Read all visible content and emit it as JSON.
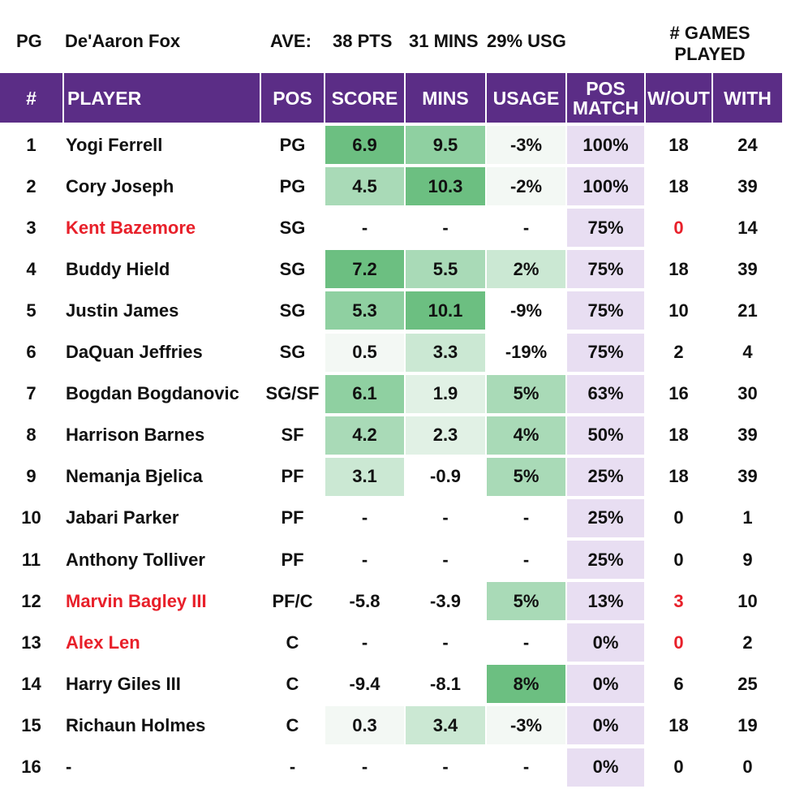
{
  "header": {
    "position": "PG",
    "player": "De'Aaron Fox",
    "ave_label": "AVE:",
    "pts": "38 PTS",
    "mins": "31 MINS",
    "usg": "29% USG",
    "games_label_1": "# GAMES",
    "games_label_2": "PLAYED"
  },
  "columns": {
    "num": "#",
    "player": "PLAYER",
    "pos": "POS",
    "score": "SCORE",
    "mins": "MINS",
    "usage": "USAGE",
    "pos_match_1": "POS",
    "pos_match_2": "MATCH",
    "without": "W/OUT",
    "with": "WITH"
  },
  "colors": {
    "header_bg": "#5b2d86",
    "header_text": "#ffffff",
    "pos_match_bg": "#e8def2",
    "injured_text": "#e8202a",
    "green_scale": [
      "#f3f8f4",
      "#e1f1e5",
      "#cbe8d3",
      "#a9dab7",
      "#8fd0a1",
      "#6cbf81"
    ]
  },
  "rows": [
    {
      "num": "1",
      "player": "Yogi Ferrell",
      "pos": "PG",
      "score": "6.9",
      "mins": "9.5",
      "usage": "-3%",
      "pos_match": "100%",
      "without": "18",
      "with": "24",
      "injured": false,
      "without_red": false,
      "score_shade": 5,
      "mins_shade": 4,
      "usage_shade": 0
    },
    {
      "num": "2",
      "player": "Cory Joseph",
      "pos": "PG",
      "score": "4.5",
      "mins": "10.3",
      "usage": "-2%",
      "pos_match": "100%",
      "without": "18",
      "with": "39",
      "injured": false,
      "without_red": false,
      "score_shade": 3,
      "mins_shade": 5,
      "usage_shade": 0
    },
    {
      "num": "3",
      "player": "Kent Bazemore",
      "pos": "SG",
      "score": "-",
      "mins": "-",
      "usage": "-",
      "pos_match": "75%",
      "without": "0",
      "with": "14",
      "injured": true,
      "without_red": true,
      "score_shade": -1,
      "mins_shade": -1,
      "usage_shade": -1
    },
    {
      "num": "4",
      "player": "Buddy Hield",
      "pos": "SG",
      "score": "7.2",
      "mins": "5.5",
      "usage": "2%",
      "pos_match": "75%",
      "without": "18",
      "with": "39",
      "injured": false,
      "without_red": false,
      "score_shade": 5,
      "mins_shade": 3,
      "usage_shade": 2
    },
    {
      "num": "5",
      "player": "Justin James",
      "pos": "SG",
      "score": "5.3",
      "mins": "10.1",
      "usage": "-9%",
      "pos_match": "75%",
      "without": "10",
      "with": "21",
      "injured": false,
      "without_red": false,
      "score_shade": 4,
      "mins_shade": 5,
      "usage_shade": -1
    },
    {
      "num": "6",
      "player": "DaQuan Jeffries",
      "pos": "SG",
      "score": "0.5",
      "mins": "3.3",
      "usage": "-19%",
      "pos_match": "75%",
      "without": "2",
      "with": "4",
      "injured": false,
      "without_red": false,
      "score_shade": 0,
      "mins_shade": 2,
      "usage_shade": -1
    },
    {
      "num": "7",
      "player": "Bogdan Bogdanovic",
      "pos": "SG/SF",
      "score": "6.1",
      "mins": "1.9",
      "usage": "5%",
      "pos_match": "63%",
      "without": "16",
      "with": "30",
      "injured": false,
      "without_red": false,
      "score_shade": 4,
      "mins_shade": 1,
      "usage_shade": 3
    },
    {
      "num": "8",
      "player": "Harrison Barnes",
      "pos": "SF",
      "score": "4.2",
      "mins": "2.3",
      "usage": "4%",
      "pos_match": "50%",
      "without": "18",
      "with": "39",
      "injured": false,
      "without_red": false,
      "score_shade": 3,
      "mins_shade": 1,
      "usage_shade": 3
    },
    {
      "num": "9",
      "player": "Nemanja Bjelica",
      "pos": "PF",
      "score": "3.1",
      "mins": "-0.9",
      "usage": "5%",
      "pos_match": "25%",
      "without": "18",
      "with": "39",
      "injured": false,
      "without_red": false,
      "score_shade": 2,
      "mins_shade": -1,
      "usage_shade": 3
    },
    {
      "num": "10",
      "player": "Jabari Parker",
      "pos": "PF",
      "score": "-",
      "mins": "-",
      "usage": "-",
      "pos_match": "25%",
      "without": "0",
      "with": "1",
      "injured": false,
      "without_red": false,
      "score_shade": -1,
      "mins_shade": -1,
      "usage_shade": -1
    },
    {
      "num": "11",
      "player": "Anthony Tolliver",
      "pos": "PF",
      "score": "-",
      "mins": "-",
      "usage": "-",
      "pos_match": "25%",
      "without": "0",
      "with": "9",
      "injured": false,
      "without_red": false,
      "score_shade": -1,
      "mins_shade": -1,
      "usage_shade": -1
    },
    {
      "num": "12",
      "player": "Marvin Bagley III",
      "pos": "PF/C",
      "score": "-5.8",
      "mins": "-3.9",
      "usage": "5%",
      "pos_match": "13%",
      "without": "3",
      "with": "10",
      "injured": true,
      "without_red": true,
      "score_shade": -1,
      "mins_shade": -1,
      "usage_shade": 3
    },
    {
      "num": "13",
      "player": "Alex Len",
      "pos": "C",
      "score": "-",
      "mins": "-",
      "usage": "-",
      "pos_match": "0%",
      "without": "0",
      "with": "2",
      "injured": true,
      "without_red": true,
      "score_shade": -1,
      "mins_shade": -1,
      "usage_shade": -1
    },
    {
      "num": "14",
      "player": "Harry Giles III",
      "pos": "C",
      "score": "-9.4",
      "mins": "-8.1",
      "usage": "8%",
      "pos_match": "0%",
      "without": "6",
      "with": "25",
      "injured": false,
      "without_red": false,
      "score_shade": -1,
      "mins_shade": -1,
      "usage_shade": 5
    },
    {
      "num": "15",
      "player": "Richaun Holmes",
      "pos": "C",
      "score": "0.3",
      "mins": "3.4",
      "usage": "-3%",
      "pos_match": "0%",
      "without": "18",
      "with": "19",
      "injured": false,
      "without_red": false,
      "score_shade": 0,
      "mins_shade": 2,
      "usage_shade": 0
    },
    {
      "num": "16",
      "player": "-",
      "pos": "-",
      "score": "-",
      "mins": "-",
      "usage": "-",
      "pos_match": "0%",
      "without": "0",
      "with": "0",
      "injured": false,
      "without_red": false,
      "score_shade": -1,
      "mins_shade": -1,
      "usage_shade": -1
    }
  ]
}
